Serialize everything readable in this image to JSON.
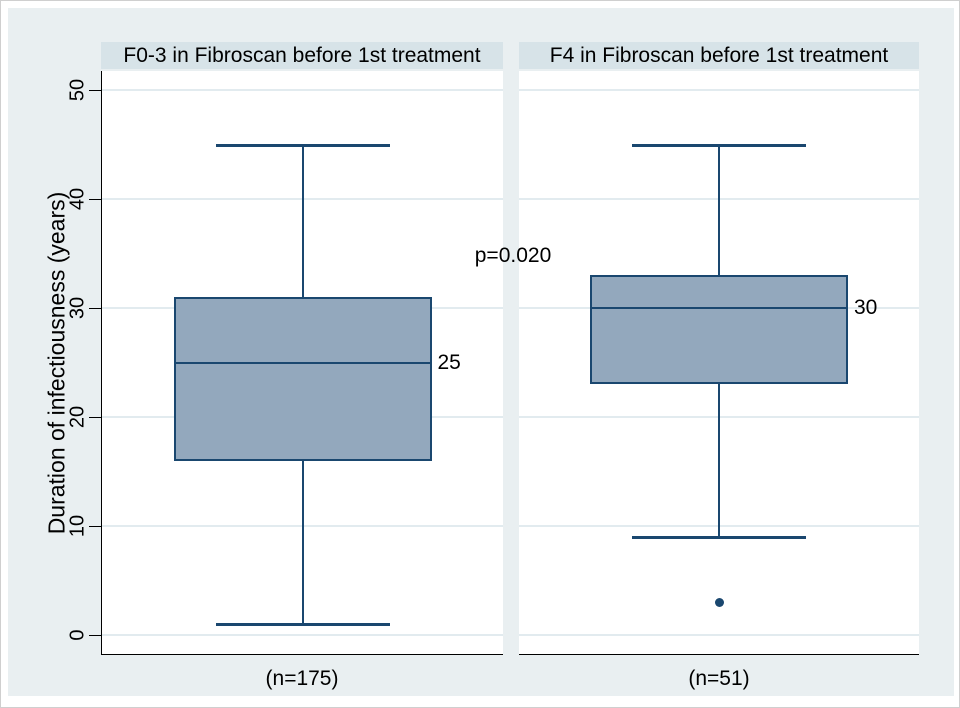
{
  "chart_data": {
    "type": "bar",
    "subtype": "boxplot",
    "y_axis": {
      "title": "Duration of infectiousness (years)",
      "ticks": [
        0,
        10,
        20,
        30,
        40,
        50
      ],
      "range": [
        0,
        50
      ],
      "grid": true
    },
    "annotation": {
      "p_label": "p=0.020"
    },
    "legend": "none",
    "panels": [
      {
        "title": "F0-3 in Fibroscan before 1st treatment",
        "n_label": "(n=175)",
        "box": {
          "whisker_low": 1,
          "q1": 16,
          "median": 25,
          "q3": 31,
          "whisker_high": 45
        },
        "median_label": "25",
        "outliers": []
      },
      {
        "title": "F4 in Fibroscan before 1st treatment",
        "n_label": "(n=51)",
        "box": {
          "whisker_low": 9,
          "q1": 23,
          "median": 30,
          "q3": 33,
          "whisker_high": 45
        },
        "median_label": "30",
        "outliers": [
          3
        ]
      }
    ],
    "colors": {
      "box_fill": "#93a8bd",
      "box_border": "#1a476f",
      "graph_background": "#e9eff1",
      "title_background": "#d7e3e8",
      "plot_background": "#ffffff",
      "gridline": "#e2ebef",
      "axis_text": "#000000"
    }
  }
}
